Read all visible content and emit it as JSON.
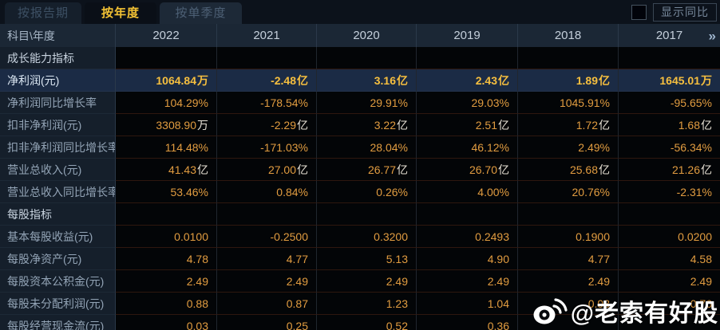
{
  "tabs": [
    {
      "label": "按报告期",
      "active": false
    },
    {
      "label": "按年度",
      "active": true
    },
    {
      "label": "按单季度",
      "active": false
    }
  ],
  "controls": {
    "show_yoy_label": "显示同比",
    "checkbox_checked": false
  },
  "table": {
    "corner_label": "科目\\年度",
    "years": [
      "2022",
      "2021",
      "2020",
      "2019",
      "2018",
      "2017"
    ],
    "more_icon": "»",
    "rows": [
      {
        "type": "section",
        "label": "成长能力指标",
        "values": [
          "",
          "",
          "",
          "",
          "",
          ""
        ]
      },
      {
        "type": "data",
        "highlight": true,
        "label": "净利润(元)",
        "values": [
          "1064.84万",
          "-2.48亿",
          "3.16亿",
          "2.43亿",
          "1.89亿",
          "1645.01万"
        ]
      },
      {
        "type": "data",
        "highlight": false,
        "label": "净利润同比增长率",
        "values": [
          "104.29%",
          "-178.54%",
          "29.91%",
          "29.03%",
          "1045.91%",
          "-95.65%"
        ]
      },
      {
        "type": "data",
        "highlight": false,
        "label": "扣非净利润(元)",
        "values": [
          "3308.90万",
          "-2.29亿",
          "3.22亿",
          "2.51亿",
          "1.72亿",
          "1.68亿"
        ]
      },
      {
        "type": "data",
        "highlight": false,
        "label": "扣非净利润同比增长率",
        "values": [
          "114.48%",
          "-171.03%",
          "28.04%",
          "46.12%",
          "2.49%",
          "-56.34%"
        ]
      },
      {
        "type": "data",
        "highlight": false,
        "label": "营业总收入(元)",
        "values": [
          "41.43亿",
          "27.00亿",
          "26.77亿",
          "26.70亿",
          "25.68亿",
          "21.26亿"
        ]
      },
      {
        "type": "data",
        "highlight": false,
        "label": "营业总收入同比增长率",
        "values": [
          "53.46%",
          "0.84%",
          "0.26%",
          "4.00%",
          "20.76%",
          "-2.31%"
        ]
      },
      {
        "type": "section",
        "label": "每股指标",
        "values": [
          "",
          "",
          "",
          "",
          "",
          ""
        ]
      },
      {
        "type": "data",
        "highlight": false,
        "label": "基本每股收益(元)",
        "values": [
          "0.0100",
          "-0.2500",
          "0.3200",
          "0.2493",
          "0.1900",
          "0.0200"
        ]
      },
      {
        "type": "data",
        "highlight": false,
        "label": "每股净资产(元)",
        "values": [
          "4.78",
          "4.77",
          "5.13",
          "4.90",
          "4.77",
          "4.58"
        ]
      },
      {
        "type": "data",
        "highlight": false,
        "label": "每股资本公积金(元)",
        "values": [
          "2.49",
          "2.49",
          "2.49",
          "2.49",
          "2.49",
          "2.49"
        ]
      },
      {
        "type": "data",
        "highlight": false,
        "label": "每股未分配利润(元)",
        "values": [
          "0.88",
          "0.87",
          "1.23",
          "1.04",
          "0.93",
          "0.76"
        ]
      },
      {
        "type": "data",
        "highlight": false,
        "label": "每股经营现金流(元)",
        "values": [
          "0.03",
          "0.25",
          "0.52",
          "0.36",
          "",
          ""
        ]
      }
    ]
  },
  "watermark": {
    "handle": "@老索有好股"
  },
  "colors": {
    "accent_gold": "#f3c234",
    "value_gold": "#e19c40",
    "highlight_row_bg": "#1b2b45",
    "header_bg": "#1b2735",
    "label_col_bg": "#151f2b",
    "data_cell_bg": "#030507"
  }
}
